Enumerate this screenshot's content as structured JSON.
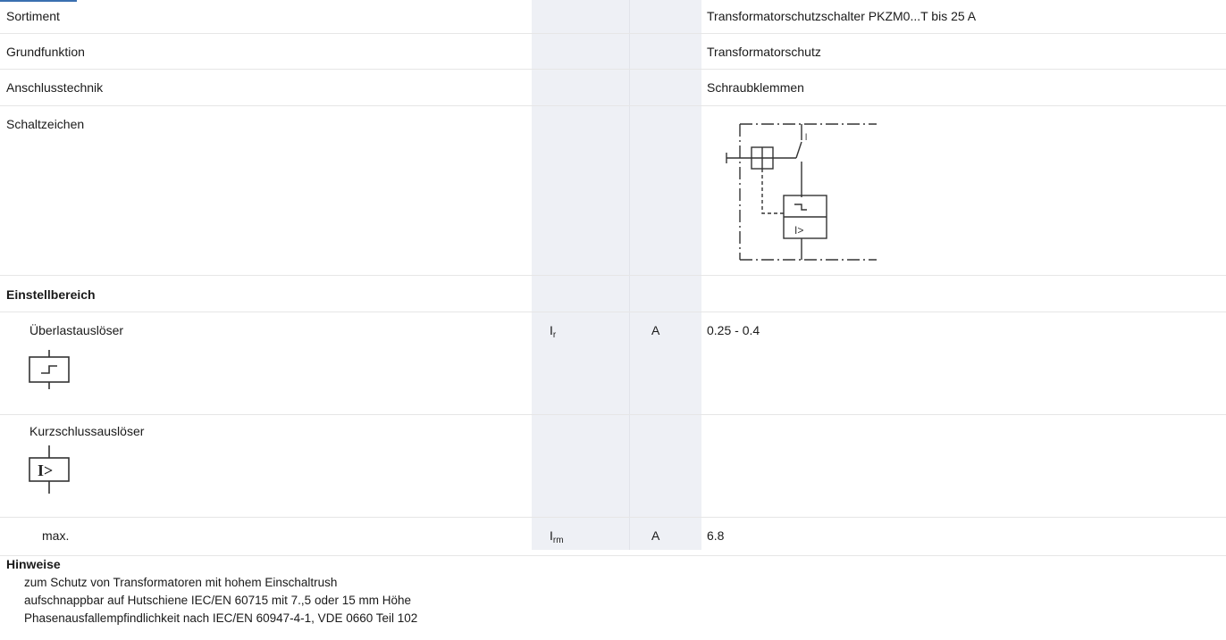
{
  "rows": [
    {
      "label": "Sortiment",
      "value": "Transformatorschutzschalter PKZM0...T bis 25 A"
    },
    {
      "label": "Grundfunktion",
      "value": "Transformatorschutz"
    },
    {
      "label": "Anschlusstechnik",
      "value": "Schraubklemmen"
    },
    {
      "label": "Schaltzeichen"
    }
  ],
  "setting_range": {
    "heading": "Einstellbereich",
    "overload": {
      "label": "Überlastauslöser",
      "symbol_main": "I",
      "symbol_sub": "r",
      "unit": "A",
      "value": "0.25 - 0.4"
    },
    "shortcircuit": {
      "label": "Kurzschlussauslöser"
    },
    "max": {
      "label": "max.",
      "symbol_main": "I",
      "symbol_sub": "rm",
      "unit": "A",
      "value": "6.8"
    }
  },
  "notes": {
    "heading": "Hinweise",
    "lines": [
      "zum Schutz von Transformatoren mit hohem Einschaltrush",
      "aufschnappbar auf Hutschiene IEC/EN 60715 mit 7.,5 oder 15 mm Höhe",
      "Phasenausfallempfindlichkeit nach IEC/EN 60947-4-1, VDE 0660 Teil 102"
    ]
  }
}
